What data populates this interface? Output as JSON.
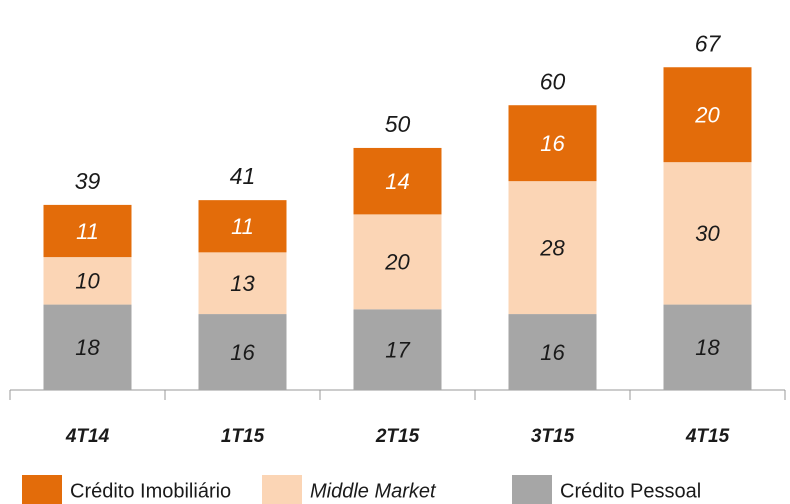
{
  "chart_data": {
    "type": "stacked_bar",
    "categories": [
      "4T14",
      "1T15",
      "2T15",
      "3T15",
      "4T15"
    ],
    "series": [
      {
        "name": "Crédito Pessoal",
        "color": "#a6a6a6",
        "values": [
          18,
          16,
          17,
          16,
          18
        ]
      },
      {
        "name": "Middle Market",
        "color": "#fbd5b5",
        "values": [
          10,
          13,
          20,
          28,
          30
        ]
      },
      {
        "name": "Crédito Imobiliário",
        "color": "#e36c0a",
        "values": [
          11,
          11,
          14,
          16,
          20
        ]
      }
    ],
    "totals": [
      39,
      41,
      50,
      60,
      67
    ],
    "legend": "bottom"
  }
}
